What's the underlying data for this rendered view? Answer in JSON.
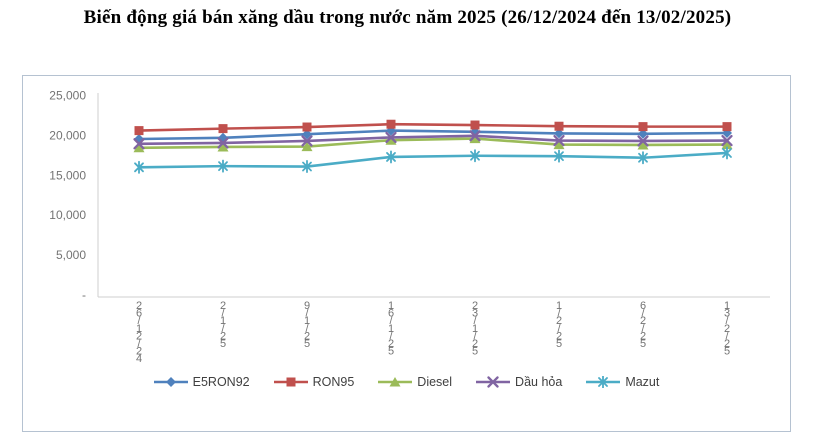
{
  "title": "Biến động giá bán xăng dầu trong nước năm 2025 (26/12/2024 đến 13/02/2025)",
  "chart_data": {
    "type": "line",
    "title": "Biến động giá bán xăng dầu trong nước năm 2025 (26/12/2024 đến 13/02/2025)",
    "categories": [
      "26/12/24",
      "2/1/25",
      "9/1/25",
      "16/1/25",
      "23/1/25",
      "1/2/25",
      "6/2/25",
      "13/2/25"
    ],
    "series": [
      {
        "name": "E5RON92",
        "marker": "diamond",
        "color": "#4F81BD",
        "values": [
          19550,
          19700,
          20150,
          20600,
          20450,
          20250,
          20200,
          20300
        ]
      },
      {
        "name": "RON95",
        "marker": "square",
        "color": "#C0504D",
        "values": [
          20600,
          20850,
          21050,
          21400,
          21300,
          21150,
          21100,
          21100
        ]
      },
      {
        "name": "Diesel",
        "marker": "triangle",
        "color": "#9BBB59",
        "values": [
          18450,
          18550,
          18600,
          19400,
          19600,
          18850,
          18800,
          18850
        ]
      },
      {
        "name": "Dầu hỏa",
        "marker": "x",
        "color": "#8064A2",
        "values": [
          18950,
          19050,
          19300,
          19750,
          19950,
          19350,
          19300,
          19350
        ]
      },
      {
        "name": "Mazut",
        "marker": "asterisk",
        "color": "#4BACC6",
        "values": [
          16000,
          16150,
          16100,
          17300,
          17450,
          17400,
          17200,
          17800
        ]
      }
    ],
    "y_axis": {
      "min": 0,
      "max": 25000,
      "step": 5000,
      "tick_labels_top_down": [
        "25,000",
        "20,000",
        "15,000",
        "10,000",
        "5,000",
        "-"
      ]
    },
    "x_axis": {
      "label_style": "vertical-stacked"
    },
    "legend_position": "bottom",
    "gridlines": false,
    "units": "đồng"
  },
  "styles": {
    "chart_border": "#b5c2d1",
    "axis_line": "#cfcfcf",
    "tick_text": "#737373",
    "legend_text": "#404040",
    "title_text": "#000000",
    "background": "#ffffff"
  }
}
